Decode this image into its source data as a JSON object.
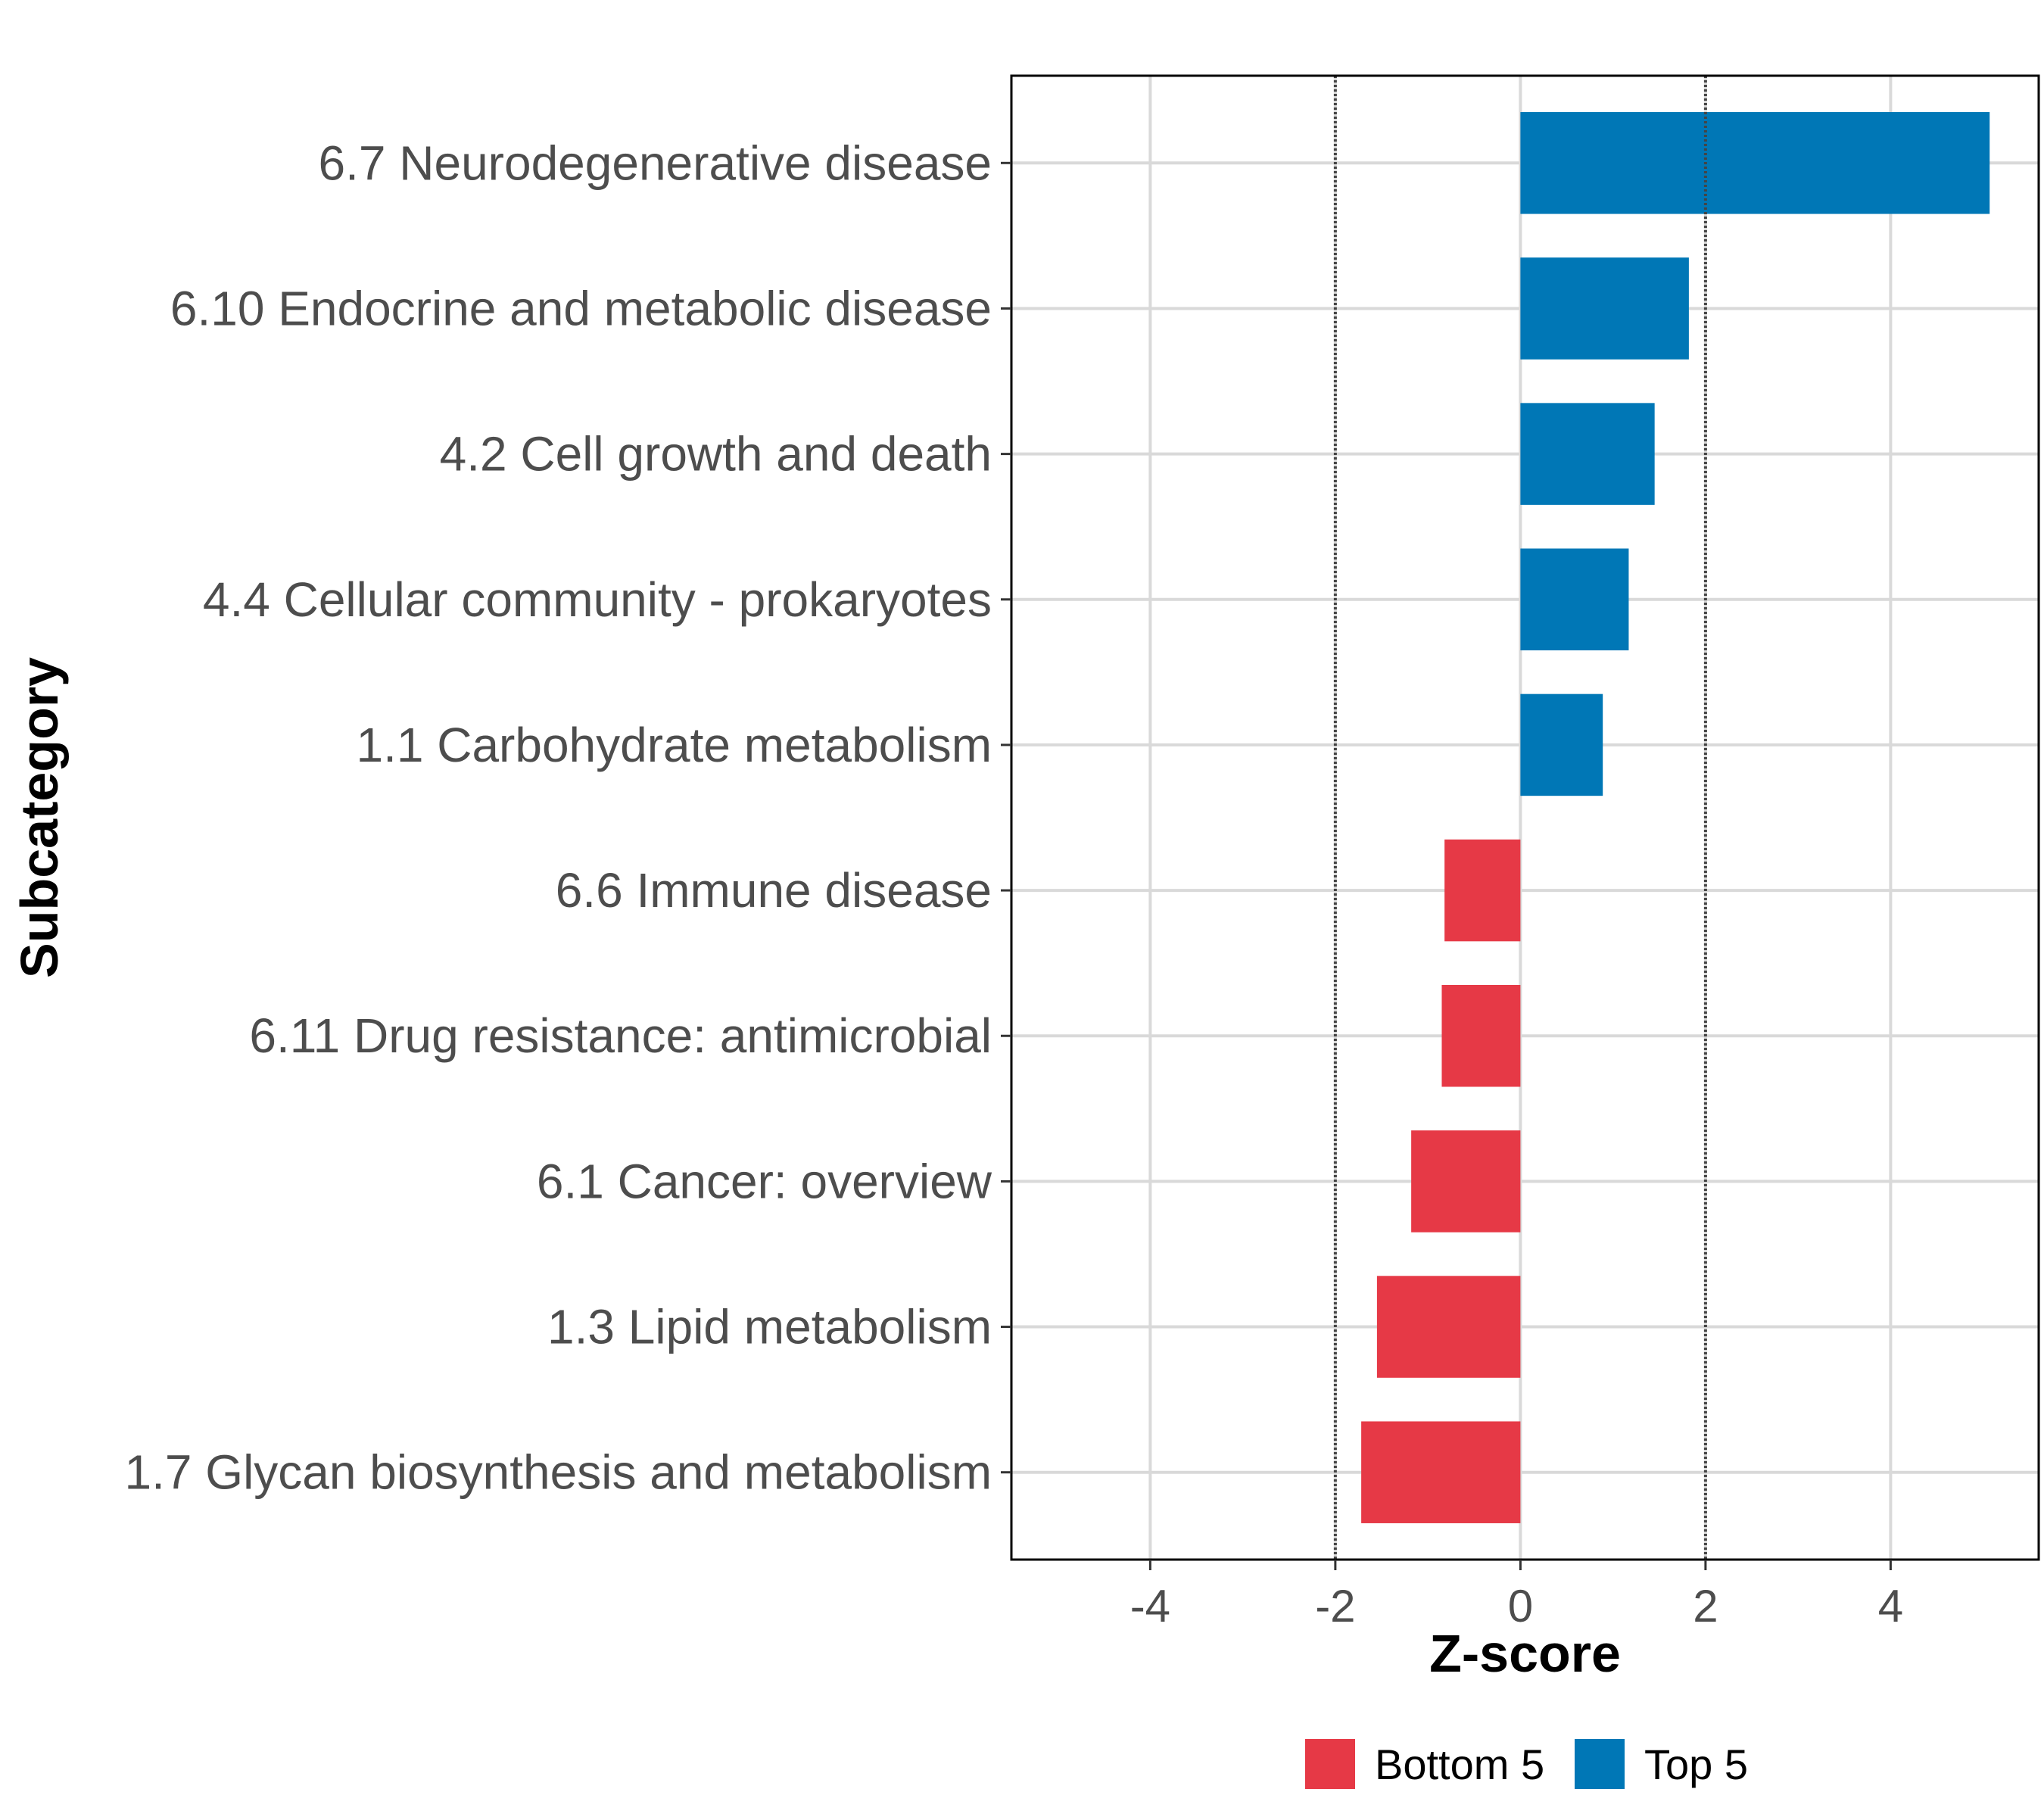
{
  "chart_data": {
    "type": "bar",
    "orientation": "horizontal",
    "categories": [
      "6.7 Neurodegenerative disease",
      "6.10 Endocrine and metabolic disease",
      "4.2 Cell growth and death",
      "4.4 Cellular community - prokaryotes",
      "1.1 Carbohydrate metabolism",
      "6.6 Immune disease",
      "6.11 Drug resistance: antimicrobial",
      "6.1 Cancer: overview",
      "1.3 Lipid metabolism",
      "1.7 Glycan biosynthesis and metabolism"
    ],
    "values": [
      5.07,
      1.82,
      1.45,
      1.17,
      0.89,
      -0.82,
      -0.85,
      -1.18,
      -1.55,
      -1.72
    ],
    "groups": [
      "Top 5",
      "Top 5",
      "Top 5",
      "Top 5",
      "Top 5",
      "Bottom 5",
      "Bottom 5",
      "Bottom 5",
      "Bottom 5",
      "Bottom 5"
    ],
    "xlabel": "Z-score",
    "ylabel": "Subcategory",
    "xlim": [
      -5.5,
      5.6
    ],
    "xticks": [
      -4,
      -2,
      0,
      2,
      4
    ],
    "xtick_labels": [
      "-4",
      "-2",
      "0",
      "2",
      "4"
    ],
    "reference_lines": [
      -2,
      2
    ],
    "grid": true,
    "legend": {
      "position": "bottom",
      "entries": [
        {
          "label": "Bottom 5",
          "color": "#e63946"
        },
        {
          "label": "Top 5",
          "color": "#0077b6"
        }
      ]
    },
    "colors": {
      "Top 5": "#0077b6",
      "Bottom 5": "#e63946"
    }
  }
}
